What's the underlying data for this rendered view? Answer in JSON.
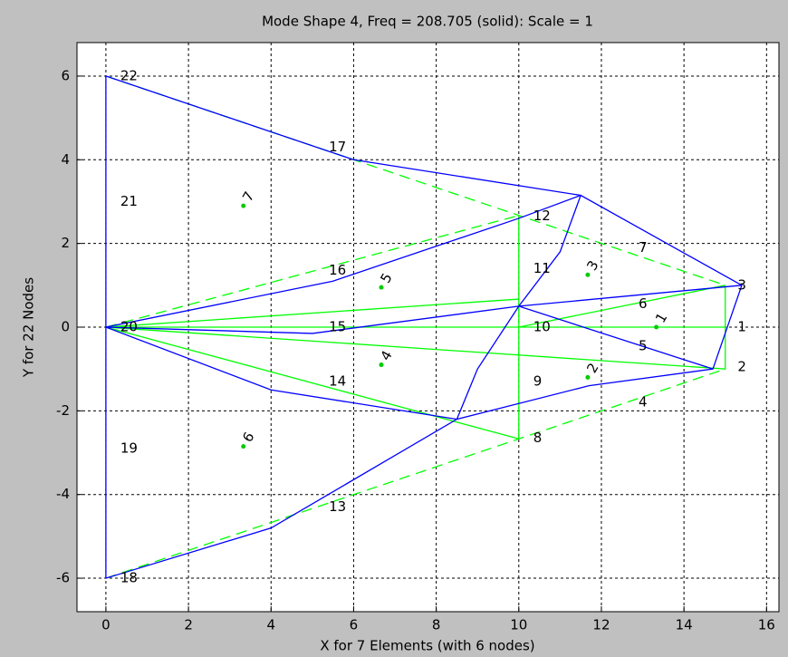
{
  "chart_data": {
    "type": "line",
    "title": "Mode Shape 4, Freq = 208.705 (solid): Scale = 1",
    "xlabel": "X for 7 Elements (with 6 nodes)",
    "ylabel": "Y for 22 Nodes",
    "xlim": [
      -0.7,
      16.3
    ],
    "ylim": [
      -6.8,
      6.8
    ],
    "xticks": [
      0,
      2,
      4,
      6,
      8,
      10,
      12,
      14,
      16
    ],
    "yticks": [
      -6,
      -4,
      -2,
      0,
      2,
      4,
      6
    ],
    "grid": true,
    "series": [
      {
        "color": "#00ff00",
        "dash": true,
        "x": [
          0,
          10,
          15,
          null,
          0,
          10,
          15,
          null,
          0,
          10
        ],
        "values": [
          6,
          2.67,
          1,
          null,
          -6,
          -2.67,
          -1,
          null,
          0,
          2.67
        ]
      },
      {
        "color": "#00ff00",
        "dash": false,
        "x": [
          0,
          10,
          15,
          null,
          0,
          15,
          15,
          null,
          10,
          10,
          null,
          0,
          10,
          null,
          0,
          10,
          null,
          10,
          15
        ],
        "values": [
          0,
          0,
          0,
          null,
          0,
          -1,
          1,
          null,
          -2.67,
          2.67,
          null,
          0,
          -2.67,
          null,
          0,
          0.67,
          null,
          0,
          1
        ]
      },
      {
        "color": "#0000ff",
        "dash": false,
        "x": [
          0,
          0,
          6,
          11.5,
          15.4,
          14.7,
          11.7,
          8.5,
          4,
          0,
          null,
          0,
          5.5,
          10,
          11.5,
          null,
          0,
          4,
          8.5,
          null,
          0,
          5,
          10,
          15.4,
          null,
          10,
          14.7,
          null,
          8.5,
          9,
          10,
          11,
          11.5
        ],
        "values": [
          -6,
          6,
          4,
          3.15,
          1,
          -1,
          -1.4,
          -2.2,
          -4.8,
          -6,
          null,
          0,
          1.1,
          2.6,
          3.15,
          null,
          0,
          -1.5,
          -2.2,
          null,
          0,
          -0.15,
          0.5,
          1,
          null,
          0.5,
          -1,
          null,
          -2.2,
          -1,
          0.5,
          1.8,
          3.15
        ]
      }
    ],
    "node_labels": [
      {
        "text": "22",
        "x": 0.35,
        "y": 6
      },
      {
        "text": "21",
        "x": 0.35,
        "y": 3
      },
      {
        "text": "20",
        "x": 0.35,
        "y": 0
      },
      {
        "text": "19",
        "x": 0.35,
        "y": -2.9
      },
      {
        "text": "18",
        "x": 0.35,
        "y": -6
      },
      {
        "text": "17",
        "x": 5.4,
        "y": 4.3
      },
      {
        "text": "16",
        "x": 5.4,
        "y": 1.35
      },
      {
        "text": "15",
        "x": 5.4,
        "y": 0
      },
      {
        "text": "14",
        "x": 5.4,
        "y": -1.3
      },
      {
        "text": "13",
        "x": 5.4,
        "y": -4.3
      },
      {
        "text": "12",
        "x": 10.35,
        "y": 2.65
      },
      {
        "text": "11",
        "x": 10.35,
        "y": 1.4
      },
      {
        "text": "10",
        "x": 10.35,
        "y": 0
      },
      {
        "text": "9",
        "x": 10.35,
        "y": -1.3
      },
      {
        "text": "8",
        "x": 10.35,
        "y": -2.65
      },
      {
        "text": "7",
        "x": 12.9,
        "y": 1.9
      },
      {
        "text": "6",
        "x": 12.9,
        "y": 0.55
      },
      {
        "text": "5",
        "x": 12.9,
        "y": -0.45
      },
      {
        "text": "4",
        "x": 12.9,
        "y": -1.8
      },
      {
        "text": "3",
        "x": 15.3,
        "y": 1
      },
      {
        "text": "2",
        "x": 15.3,
        "y": -0.95
      },
      {
        "text": "1",
        "x": 15.3,
        "y": 0
      }
    ],
    "element_labels": [
      {
        "text": "7",
        "x": 3.33,
        "y": 2.9
      },
      {
        "text": "5",
        "x": 6.67,
        "y": 0.95
      },
      {
        "text": "3",
        "x": 11.67,
        "y": 1.25
      },
      {
        "text": "1",
        "x": 13.33,
        "y": 0
      },
      {
        "text": "4",
        "x": 6.67,
        "y": -0.9
      },
      {
        "text": "2",
        "x": 11.67,
        "y": -1.2
      },
      {
        "text": "6",
        "x": 3.33,
        "y": -2.85
      }
    ],
    "element_color": "#00cc00"
  }
}
